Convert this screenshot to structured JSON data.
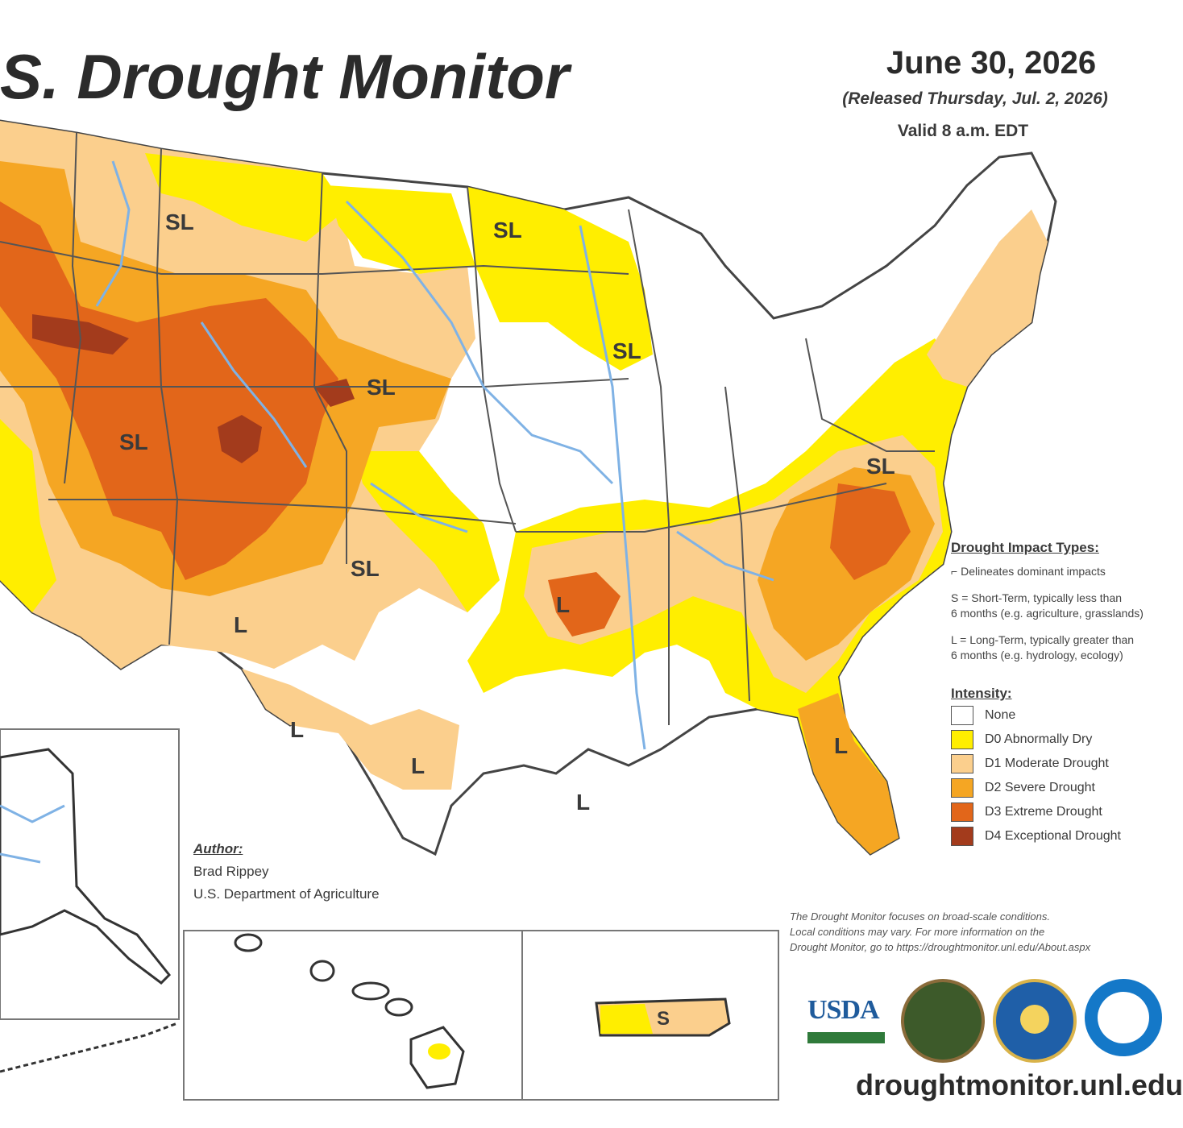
{
  "header": {
    "title": "S. Drought Monitor",
    "date": "June 30, 2026",
    "released": "(Released Thursday, Jul. 2, 2026)",
    "valid": "Valid 8 a.m. EDT"
  },
  "map_labels": {
    "conus": [
      "SL",
      "SL",
      "SL",
      "SL",
      "SL",
      "SL",
      "SL",
      "L",
      "L",
      "L",
      "L",
      "L",
      "L"
    ],
    "puerto_rico": "S"
  },
  "legend": {
    "impact_heading": "Drought Impact Types:",
    "delineates": "Delineates dominant impacts",
    "short_term_1": "S = Short-Term, typically less than",
    "short_term_2": "6 months (e.g. agriculture, grasslands)",
    "long_term_1": "L = Long-Term, typically greater than",
    "long_term_2": "6 months (e.g. hydrology, ecology)",
    "intensity_heading": "Intensity:",
    "categories": [
      {
        "label": "None",
        "color": "#ffffff"
      },
      {
        "label": "D0 Abnormally Dry",
        "color": "#ffee00"
      },
      {
        "label": "D1 Moderate Drought",
        "color": "#fbcf8d"
      },
      {
        "label": "D2 Severe Drought",
        "color": "#f5a623"
      },
      {
        "label": "D3 Extreme Drought",
        "color": "#e2661a"
      },
      {
        "label": "D4 Exceptional Drought",
        "color": "#a33b1c"
      }
    ]
  },
  "author": {
    "label": "Author:",
    "name": "Brad Rippey",
    "org": "U.S. Department of Agriculture"
  },
  "disclaimer": {
    "line1": "The Drought Monitor focuses on broad-scale conditions.",
    "line2": "Local conditions may vary. For more information on the",
    "line3": "Drought Monitor, go to https://droughtmonitor.unl.edu/About.aspx"
  },
  "logos": [
    "usda-logo",
    "ndmc-logo",
    "doc-logo",
    "noaa-logo"
  ],
  "usda_text": "USDA",
  "url": "droughtmonitor.unl.edu"
}
